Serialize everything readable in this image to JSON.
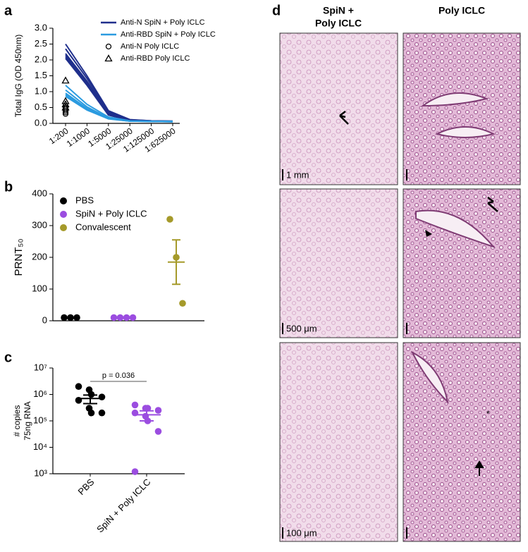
{
  "panel_labels": [
    "a",
    "b",
    "c",
    "d"
  ],
  "chart_data": [
    {
      "type": "line",
      "y_label": "Total IgG (OD 450nm)",
      "categories": [
        "1:200",
        "1:1000",
        "1:5000",
        "1:25000",
        "1:125000",
        "1:625000"
      ],
      "ylim": [
        0,
        3
      ],
      "yticks": [
        {
          "value": 0,
          "label": "0.0"
        },
        {
          "value": 0.5,
          "label": "0.5"
        },
        {
          "value": 1,
          "label": "1.0"
        },
        {
          "value": 1.5,
          "label": "1.5"
        },
        {
          "value": 2,
          "label": "2.0"
        },
        {
          "value": 2.5,
          "label": "2.5"
        },
        {
          "value": 3,
          "label": "3.0"
        }
      ],
      "series": [
        {
          "name": "Anti-N SpiN + Poly ICLC",
          "color": "#1f2f8c",
          "marker": "line",
          "values": [
            [
              2.5,
              1.5,
              0.4,
              0.12,
              0.08,
              0.07
            ],
            [
              2.35,
              1.42,
              0.36,
              0.11,
              0.08,
              0.07
            ],
            [
              2.2,
              1.33,
              0.32,
              0.1,
              0.07,
              0.07
            ],
            [
              2.15,
              1.28,
              0.3,
              0.1,
              0.07,
              0.06
            ],
            [
              2.1,
              1.25,
              0.28,
              0.09,
              0.07,
              0.06
            ],
            [
              2.05,
              1.2,
              0.26,
              0.09,
              0.06,
              0.06
            ]
          ]
        },
        {
          "name": "Anti-RBD SpiN + Poly ICLC",
          "color": "#2b9be0",
          "marker": "line",
          "values": [
            [
              1.2,
              0.6,
              0.2,
              0.08,
              0.07,
              0.06
            ],
            [
              1.05,
              0.52,
              0.17,
              0.08,
              0.06,
              0.06
            ],
            [
              0.95,
              0.47,
              0.16,
              0.07,
              0.06,
              0.06
            ],
            [
              0.9,
              0.44,
              0.15,
              0.07,
              0.06,
              0.05
            ],
            [
              0.85,
              0.42,
              0.14,
              0.07,
              0.06,
              0.05
            ]
          ]
        },
        {
          "name": "Anti-N Poly ICLC",
          "color": "#000000",
          "marker": "circle",
          "values": [
            [
              0.55,
              null,
              null,
              null,
              null,
              null
            ],
            [
              0.5,
              null,
              null,
              null,
              null,
              null
            ],
            [
              0.45,
              null,
              null,
              null,
              null,
              null
            ],
            [
              0.4,
              null,
              null,
              null,
              null,
              null
            ],
            [
              0.35,
              null,
              null,
              null,
              null,
              null
            ],
            [
              0.3,
              null,
              null,
              null,
              null,
              null
            ]
          ]
        },
        {
          "name": "Anti-RBD Poly ICLC",
          "color": "#000000",
          "marker": "triangle",
          "values": [
            [
              1.35,
              null,
              null,
              null,
              null,
              null
            ],
            [
              0.7,
              null,
              null,
              null,
              null,
              null
            ],
            [
              0.6,
              null,
              null,
              null,
              null,
              null
            ],
            [
              0.5,
              null,
              null,
              null,
              null,
              null
            ]
          ]
        }
      ]
    },
    {
      "type": "scatter",
      "y_label": "PRNT₅₀",
      "ylim": [
        0,
        400
      ],
      "yticks": [
        0,
        100,
        200,
        300,
        400
      ],
      "series": [
        {
          "name": "PBS",
          "color": "#000000",
          "values": [
            10,
            10,
            10
          ],
          "mean": 10
        },
        {
          "name": "SpiN + Poly ICLC",
          "color": "#9b4de0",
          "values": [
            10,
            10,
            10,
            10
          ],
          "mean": 10
        },
        {
          "name": "Convalescent",
          "color": "#a59a2a",
          "values": [
            320,
            200,
            55
          ],
          "mean": 185,
          "sem": 70
        }
      ]
    },
    {
      "type": "scatter",
      "log_scale": true,
      "y_label": [
        "# copies",
        "75ng RNA"
      ],
      "categories": [
        "PBS",
        "SpiN + Poly ICLC"
      ],
      "ylim": [
        1000,
        10000000
      ],
      "yticks": [
        {
          "value": 1000,
          "label": "10³"
        },
        {
          "value": 10000,
          "label": "10⁴"
        },
        {
          "value": 100000,
          "label": "10⁵"
        },
        {
          "value": 1000000,
          "label": "10⁶"
        },
        {
          "value": 10000000,
          "label": "10⁷"
        }
      ],
      "annotation": "p = 0.036",
      "series": [
        {
          "color": "#000000",
          "values": [
            2000000,
            1500000,
            1000000,
            800000,
            600000,
            300000,
            200000,
            200000
          ],
          "mean": 700000,
          "sem": 250000
        },
        {
          "color": "#9b4de0",
          "values": [
            400000,
            300000,
            300000,
            250000,
            200000,
            150000,
            100000,
            40000,
            1200
          ],
          "mean": 170000,
          "sem": 70000
        }
      ]
    }
  ],
  "histology": {
    "columns": [
      [
        "SpiN +",
        "Poly ICLC"
      ],
      [
        "Poly ICLC"
      ]
    ],
    "scale_bars": [
      "1 mm",
      "500 μm",
      "100 μm"
    ]
  }
}
